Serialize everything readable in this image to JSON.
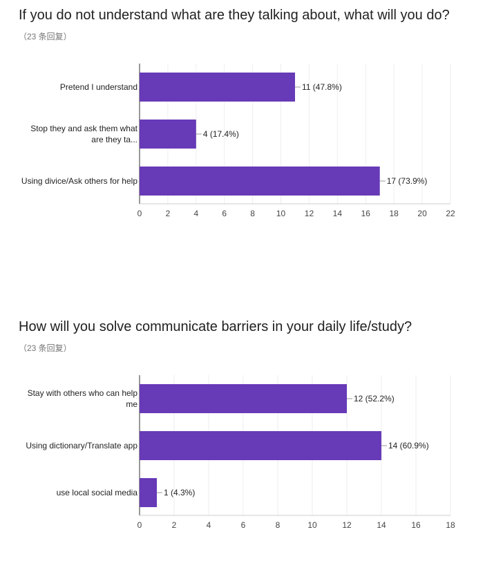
{
  "questions": [
    {
      "title": "If you do not understand what are they talking about, what will you do?",
      "subtitle": "（23 条回复）"
    },
    {
      "title": "How will you solve communicate barriers in your daily life/study?",
      "subtitle": "（23 条回复）"
    }
  ],
  "chart_data": [
    {
      "type": "bar",
      "orientation": "horizontal",
      "categories": [
        [
          "Pretend I understand"
        ],
        [
          "Stop they and ask them what",
          "are they ta..."
        ],
        [
          "Using divice/Ask others for help"
        ]
      ],
      "values": [
        11,
        4,
        17
      ],
      "labels": [
        "11 (47.8%)",
        "4 (17.4%)",
        "17 (73.9%)"
      ],
      "xlim": [
        0,
        22
      ],
      "ticks": [
        0,
        2,
        4,
        6,
        8,
        10,
        12,
        14,
        16,
        18,
        20,
        22
      ],
      "bar_color": "#673ab7",
      "grid": true
    },
    {
      "type": "bar",
      "orientation": "horizontal",
      "categories": [
        [
          "Stay with others who can help",
          "me"
        ],
        [
          "Using dictionary/Translate app"
        ],
        [
          "use local social media"
        ]
      ],
      "values": [
        12,
        14,
        1
      ],
      "labels": [
        "12 (52.2%)",
        "14 (60.9%)",
        "1 (4.3%)"
      ],
      "xlim": [
        0,
        18
      ],
      "ticks": [
        0,
        2,
        4,
        6,
        8,
        10,
        12,
        14,
        16,
        18
      ],
      "bar_color": "#673ab7",
      "grid": true
    }
  ]
}
